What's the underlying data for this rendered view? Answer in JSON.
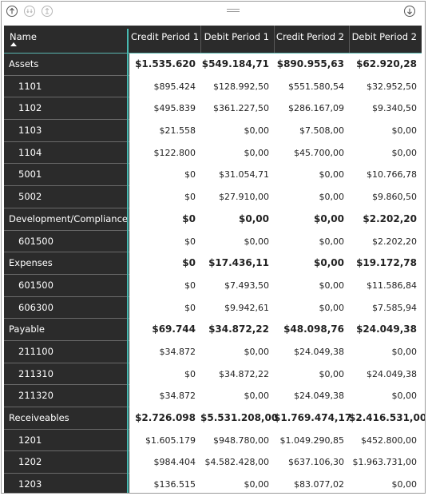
{
  "toolbar": {
    "icons": [
      "arrow-up-icon",
      "drill-down-icon",
      "expand-all-icon",
      "grip-icon",
      "arrow-down-icon"
    ]
  },
  "table": {
    "columns": [
      "Name",
      "Credit Period 1",
      "Debit Period 1",
      "Credit Period 2",
      "Debit Period 2"
    ],
    "rows": [
      {
        "type": "group",
        "name": "Assets",
        "values": [
          "$1.535.620",
          "$549.184,71",
          "$890.955,63",
          "$62.920,28"
        ]
      },
      {
        "type": "child",
        "name": "1101",
        "values": [
          "$895.424",
          "$128.992,50",
          "$551.580,54",
          "$32.952,50"
        ]
      },
      {
        "type": "child",
        "name": "1102",
        "values": [
          "$495.839",
          "$361.227,50",
          "$286.167,09",
          "$9.340,50"
        ]
      },
      {
        "type": "child",
        "name": "1103",
        "values": [
          "$21.558",
          "$0,00",
          "$7.508,00",
          "$0,00"
        ]
      },
      {
        "type": "child",
        "name": "1104",
        "values": [
          "$122.800",
          "$0,00",
          "$45.700,00",
          "$0,00"
        ]
      },
      {
        "type": "child",
        "name": "5001",
        "values": [
          "$0",
          "$31.054,71",
          "$0,00",
          "$10.766,78"
        ]
      },
      {
        "type": "child",
        "name": "5002",
        "values": [
          "$0",
          "$27.910,00",
          "$0,00",
          "$9.860,50"
        ]
      },
      {
        "type": "group",
        "name": "Development/Compliance",
        "values": [
          "$0",
          "$0,00",
          "$0,00",
          "$2.202,20"
        ]
      },
      {
        "type": "child",
        "name": "601500",
        "values": [
          "$0",
          "$0,00",
          "$0,00",
          "$2.202,20"
        ]
      },
      {
        "type": "group",
        "name": "Expenses",
        "values": [
          "$0",
          "$17.436,11",
          "$0,00",
          "$19.172,78"
        ]
      },
      {
        "type": "child",
        "name": "601500",
        "values": [
          "$0",
          "$7.493,50",
          "$0,00",
          "$11.586,84"
        ]
      },
      {
        "type": "child",
        "name": "606300",
        "values": [
          "$0",
          "$9.942,61",
          "$0,00",
          "$7.585,94"
        ]
      },
      {
        "type": "group",
        "name": "Payable",
        "values": [
          "$69.744",
          "$34.872,22",
          "$48.098,76",
          "$24.049,38"
        ]
      },
      {
        "type": "child",
        "name": "211100",
        "values": [
          "$34.872",
          "$0,00",
          "$24.049,38",
          "$0,00"
        ]
      },
      {
        "type": "child",
        "name": "211310",
        "values": [
          "$0",
          "$34.872,22",
          "$0,00",
          "$24.049,38"
        ]
      },
      {
        "type": "child",
        "name": "211320",
        "values": [
          "$34.872",
          "$0,00",
          "$24.049,38",
          "$0,00"
        ]
      },
      {
        "type": "group",
        "name": "Receiveables",
        "values": [
          "$2.726.098",
          "$5.531.208,00",
          "$1.769.474,17",
          "$2.416.531,00"
        ]
      },
      {
        "type": "child",
        "name": "1201",
        "values": [
          "$1.605.179",
          "$948.780,00",
          "$1.049.290,85",
          "$452.800,00"
        ]
      },
      {
        "type": "child",
        "name": "1202",
        "values": [
          "$984.404",
          "$4.582.428,00",
          "$637.106,30",
          "$1.963.731,00"
        ]
      },
      {
        "type": "child",
        "name": "1203",
        "values": [
          "$136.515",
          "$0,00",
          "$83.077,02",
          "$0,00"
        ]
      }
    ]
  },
  "colors": {
    "header_bg": "#2b2b2b",
    "accent": "#48b9b1"
  }
}
